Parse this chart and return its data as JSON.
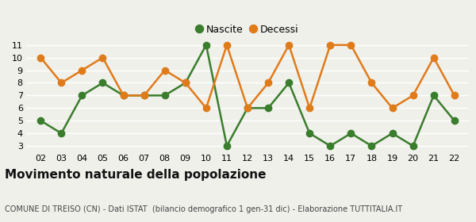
{
  "x_labels": [
    "02",
    "03",
    "04",
    "05",
    "06",
    "07",
    "08",
    "09",
    "10",
    "11",
    "12",
    "13",
    "14",
    "15",
    "16",
    "17",
    "18",
    "19",
    "20",
    "21",
    "22"
  ],
  "x_values": [
    2,
    3,
    4,
    5,
    6,
    7,
    8,
    9,
    10,
    11,
    12,
    13,
    14,
    15,
    16,
    17,
    18,
    19,
    20,
    21,
    22
  ],
  "nascite": [
    5,
    4,
    7,
    8,
    7,
    7,
    7,
    8,
    11,
    3,
    6,
    6,
    8,
    4,
    3,
    4,
    3,
    4,
    3,
    7,
    5
  ],
  "decessi": [
    10,
    8,
    9,
    10,
    7,
    7,
    9,
    8,
    6,
    11,
    6,
    8,
    11,
    6,
    11,
    11,
    8,
    6,
    7,
    10,
    7
  ],
  "nascite_color": "#3a7d2c",
  "decessi_color": "#e07b1a",
  "background_color": "#f0f0eb",
  "grid_color": "#ffffff",
  "ylim_min": 2.6,
  "ylim_max": 11.4,
  "yticks": [
    3,
    4,
    5,
    6,
    7,
    8,
    9,
    10,
    11
  ],
  "title": "Movimento naturale della popolazione",
  "subtitle": "COMUNE DI TREISO (CN) - Dati ISTAT  (bilancio demografico 1 gen-31 dic) - Elaborazione TUTTITALIA.IT",
  "legend_nascite": "Nascite",
  "legend_decessi": "Decessi",
  "marker_size": 6,
  "line_width": 1.8,
  "tick_fontsize": 8,
  "title_fontsize": 11,
  "subtitle_fontsize": 7,
  "legend_fontsize": 9
}
